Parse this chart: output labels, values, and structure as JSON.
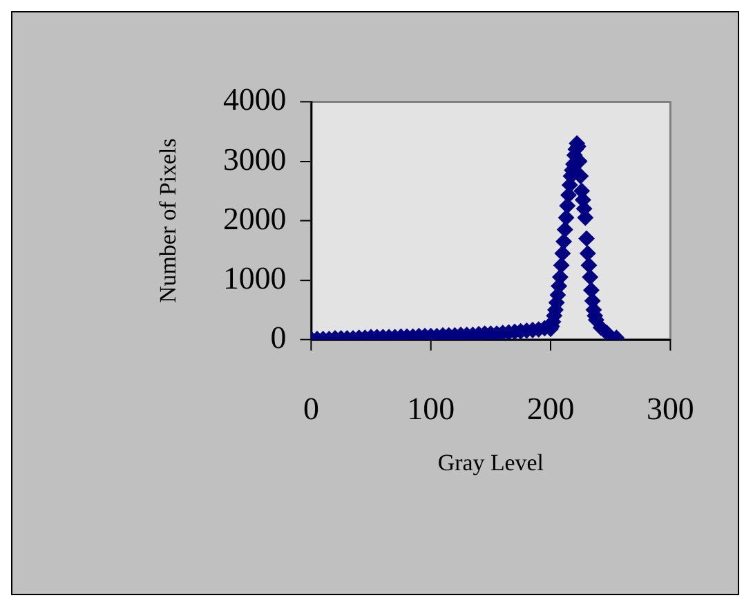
{
  "chart_data": {
    "type": "scatter",
    "xlabel": "Gray Level",
    "ylabel": "Number of Pixels",
    "marker": "diamond",
    "legend": false,
    "grid": false,
    "xlim": [
      0,
      300
    ],
    "xticks": [
      0,
      100,
      200,
      300
    ],
    "ylim": [
      0,
      4000
    ],
    "yticks": [
      0,
      1000,
      2000,
      3000,
      4000
    ],
    "series": [
      {
        "color": "#000080",
        "x": [
          0,
          5,
          10,
          15,
          20,
          25,
          30,
          35,
          40,
          45,
          50,
          55,
          60,
          65,
          70,
          75,
          80,
          85,
          90,
          95,
          100,
          105,
          110,
          115,
          120,
          125,
          130,
          135,
          140,
          145,
          150,
          155,
          160,
          165,
          170,
          175,
          180,
          185,
          190,
          195,
          200,
          201,
          202,
          203,
          204,
          205,
          206,
          207,
          208,
          209,
          210,
          211,
          212,
          213,
          214,
          215,
          216,
          217,
          218,
          219,
          220,
          221,
          222,
          223,
          224,
          225,
          226,
          227,
          228,
          229,
          230,
          231,
          232,
          233,
          234,
          235,
          236,
          237,
          238,
          242,
          247,
          255
        ],
        "values": [
          10,
          10,
          10,
          10,
          20,
          20,
          20,
          20,
          30,
          30,
          40,
          40,
          40,
          40,
          40,
          50,
          50,
          50,
          60,
          60,
          60,
          60,
          70,
          70,
          70,
          80,
          80,
          80,
          90,
          100,
          100,
          100,
          110,
          120,
          130,
          140,
          150,
          160,
          170,
          190,
          180,
          220,
          300,
          400,
          500,
          620,
          750,
          900,
          1050,
          1250,
          1450,
          1650,
          1850,
          2050,
          2250,
          2430,
          2600,
          2750,
          2850,
          2950,
          3100,
          3200,
          3300,
          3250,
          3000,
          2750,
          2500,
          2350,
          2200,
          2050,
          1700,
          1450,
          1250,
          1050,
          830,
          650,
          500,
          400,
          330,
          200,
          110,
          30
        ]
      }
    ]
  }
}
